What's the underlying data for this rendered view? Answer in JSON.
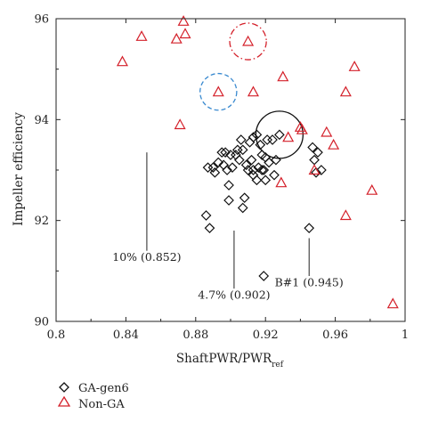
{
  "chart_data": {
    "type": "scatter",
    "xlabel_main": "ShaftPWR/PWR",
    "xlabel_sub": "ref",
    "ylabel": "Impeller efficiency",
    "xlim": [
      0.8,
      1.0
    ],
    "ylim": [
      90,
      96
    ],
    "xticks": [
      0.8,
      0.84,
      0.88,
      0.92,
      0.96,
      1.0
    ],
    "xtick_labels": [
      "0.8",
      "0.84",
      "0.88",
      "0.92",
      "0.96",
      "1"
    ],
    "yticks": [
      90,
      92,
      94,
      96
    ],
    "ytick_labels": [
      "90",
      "92",
      "94",
      "96"
    ],
    "grid": false,
    "legend_position": "bottom-left",
    "series": [
      {
        "name": "GA-gen6",
        "marker": "diamond",
        "color": "#111111",
        "points": [
          [
            0.886,
            92.1
          ],
          [
            0.888,
            91.85
          ],
          [
            0.887,
            93.05
          ],
          [
            0.89,
            93.05
          ],
          [
            0.891,
            92.95
          ],
          [
            0.893,
            93.15
          ],
          [
            0.895,
            93.35
          ],
          [
            0.896,
            93.1
          ],
          [
            0.897,
            93.35
          ],
          [
            0.898,
            93.0
          ],
          [
            0.899,
            92.7
          ],
          [
            0.9,
            93.3
          ],
          [
            0.899,
            92.4
          ],
          [
            0.901,
            93.05
          ],
          [
            0.903,
            93.3
          ],
          [
            0.905,
            93.2
          ],
          [
            0.906,
            93.6
          ],
          [
            0.907,
            93.4
          ],
          [
            0.909,
            93.1
          ],
          [
            0.911,
            93.55
          ],
          [
            0.912,
            93.2
          ],
          [
            0.913,
            93.65
          ],
          [
            0.913,
            93.0
          ],
          [
            0.915,
            93.7
          ],
          [
            0.917,
            93.5
          ],
          [
            0.918,
            93.3
          ],
          [
            0.919,
            93.0
          ],
          [
            0.92,
            92.8
          ],
          [
            0.921,
            93.6
          ],
          [
            0.922,
            93.15
          ],
          [
            0.924,
            93.6
          ],
          [
            0.925,
            92.9
          ],
          [
            0.926,
            93.2
          ],
          [
            0.928,
            93.7
          ],
          [
            0.91,
            93.0
          ],
          [
            0.908,
            92.45
          ],
          [
            0.907,
            92.25
          ],
          [
            0.915,
            92.8
          ],
          [
            0.918,
            93.0
          ],
          [
            0.92,
            93.25
          ],
          [
            0.916,
            93.05
          ],
          [
            0.919,
            90.9
          ],
          [
            0.945,
            91.85
          ],
          [
            0.947,
            93.45
          ],
          [
            0.95,
            93.35
          ],
          [
            0.948,
            93.2
          ],
          [
            0.952,
            93.0
          ],
          [
            0.949,
            92.95
          ],
          [
            0.913,
            92.9
          ],
          [
            0.904,
            93.4
          ]
        ]
      },
      {
        "name": "Non-GA",
        "marker": "triangle",
        "color": "#d4202a",
        "points": [
          [
            0.838,
            95.15
          ],
          [
            0.849,
            95.65
          ],
          [
            0.869,
            95.6
          ],
          [
            0.873,
            95.95
          ],
          [
            0.874,
            95.7
          ],
          [
            0.871,
            93.9
          ],
          [
            0.893,
            94.55
          ],
          [
            0.91,
            95.55
          ],
          [
            0.913,
            94.55
          ],
          [
            0.93,
            94.85
          ],
          [
            0.929,
            92.75
          ],
          [
            0.933,
            93.65
          ],
          [
            0.94,
            93.85
          ],
          [
            0.941,
            93.8
          ],
          [
            0.955,
            93.75
          ],
          [
            0.959,
            93.5
          ],
          [
            0.948,
            93.0
          ],
          [
            0.966,
            94.55
          ],
          [
            0.971,
            95.05
          ],
          [
            0.966,
            92.1
          ],
          [
            0.981,
            92.6
          ],
          [
            0.993,
            90.35
          ]
        ]
      }
    ],
    "highlight_circles": [
      {
        "cx": 0.91,
        "cy": 95.55,
        "r": 0.0105,
        "style": "dash-dot",
        "color": "#d4202a"
      },
      {
        "cx": 0.893,
        "cy": 94.55,
        "r": 0.0105,
        "style": "dashed",
        "color": "#3a8ad0"
      },
      {
        "cx": 0.928,
        "cy": 93.7,
        "r": 0.0135,
        "style": "solid",
        "color": "#111111"
      }
    ],
    "annotations": [
      {
        "text": "10% (0.852)",
        "line_x": 0.852,
        "line_y": [
          91.4,
          93.35
        ],
        "text_x": 0.852,
        "text_y": 91.2
      },
      {
        "text": "4.7% (0.902)",
        "line_x": 0.902,
        "line_y": [
          90.65,
          91.8
        ],
        "text_x": 0.902,
        "text_y": 90.45
      },
      {
        "text": "B#1 (0.945)",
        "line_x": 0.945,
        "line_y": [
          90.9,
          91.65
        ],
        "text_x": 0.945,
        "text_y": 90.7
      }
    ]
  }
}
